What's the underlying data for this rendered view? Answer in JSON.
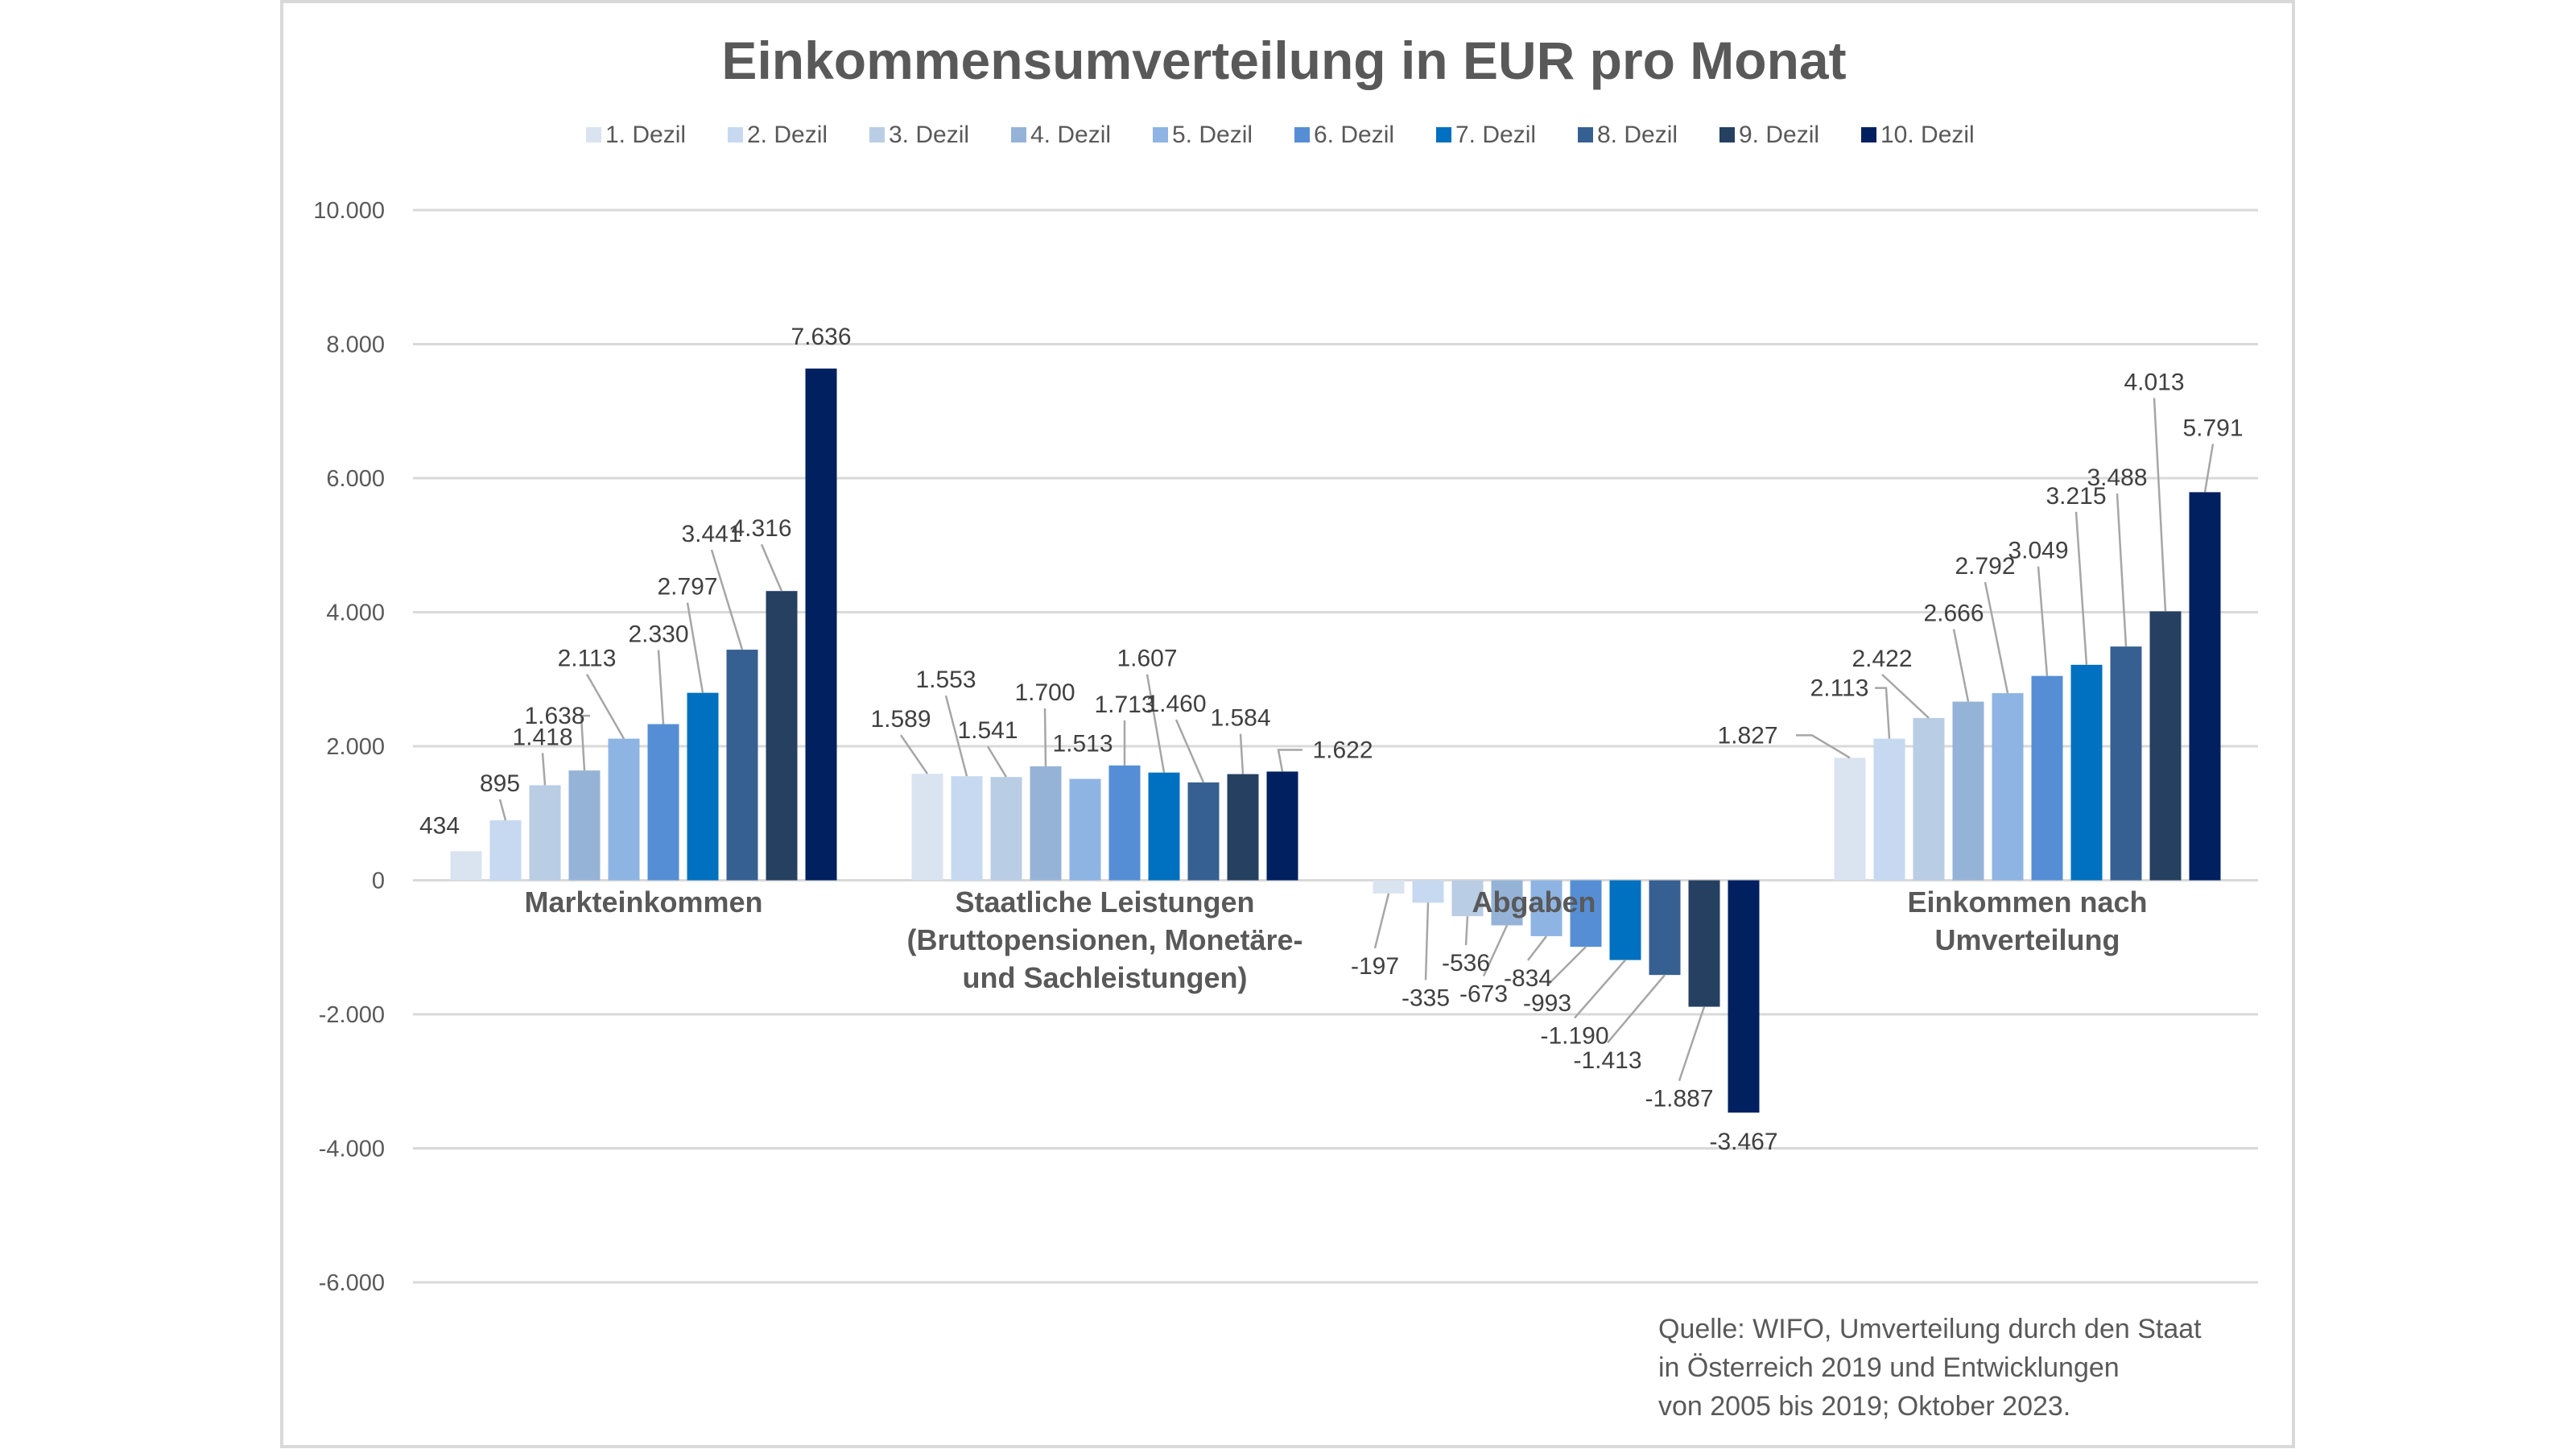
{
  "chart_data": {
    "type": "bar",
    "title": "Einkommensumverteilung in EUR pro Monat",
    "xlabel": "",
    "ylabel": "",
    "ylim": [
      -6000,
      10000
    ],
    "yticks": [
      10000,
      8000,
      6000,
      4000,
      2000,
      0,
      -2000,
      -4000,
      -6000
    ],
    "ytick_labels": [
      "10.000",
      "8.000",
      "6.000",
      "4.000",
      "2.000",
      "0",
      "-2.000",
      "-4.000",
      "-6.000"
    ],
    "grid": true,
    "legend_position": "top",
    "categories": [
      "Markteinkommen",
      "Staatliche Leistungen (Bruttopensionen, Monetäre- und Sachleistungen)",
      "Abgaben",
      "Einkommen nach Umverteilung"
    ],
    "category_label_lines": [
      [
        "Markteinkommen"
      ],
      [
        "Staatliche Leistungen",
        "(Bruttopensionen, Monetäre-",
        "und Sachleistungen)"
      ],
      [
        "Abgaben"
      ],
      [
        "Einkommen nach",
        "Umverteilung"
      ]
    ],
    "series": [
      {
        "name": "1. Dezil",
        "color": "#DAE3F0",
        "values": [
          434,
          1589,
          -197,
          1827
        ],
        "labels": [
          "434",
          "1.589",
          "-197",
          "1.827"
        ]
      },
      {
        "name": "2. Dezil",
        "color": "#C6D9F1",
        "values": [
          895,
          1553,
          -335,
          2113
        ],
        "labels": [
          "895",
          "1.553",
          "-335",
          "2.113"
        ]
      },
      {
        "name": "3. Dezil",
        "color": "#B9CDE5",
        "values": [
          1418,
          1541,
          -536,
          2422
        ],
        "labels": [
          "1.418",
          "1.541",
          "-536",
          "2.422"
        ]
      },
      {
        "name": "4. Dezil",
        "color": "#95B3D7",
        "values": [
          1638,
          1700,
          -673,
          2666
        ],
        "labels": [
          "1.638",
          "1.700",
          "-673",
          "2.666"
        ]
      },
      {
        "name": "5. Dezil",
        "color": "#8EB4E3",
        "values": [
          2113,
          1513,
          -834,
          2792
        ],
        "labels": [
          "2.113",
          "1.513",
          "-834",
          "2.792"
        ]
      },
      {
        "name": "6. Dezil",
        "color": "#558ED5",
        "values": [
          2330,
          1713,
          -993,
          3049
        ],
        "labels": [
          "2.330",
          "1.713",
          "-993",
          "3.049"
        ]
      },
      {
        "name": "7. Dezil",
        "color": "#0070C0",
        "values": [
          2797,
          1607,
          -1190,
          3215
        ],
        "labels": [
          "2.797",
          "1.607",
          "-1.190",
          "3.215"
        ]
      },
      {
        "name": "8. Dezil",
        "color": "#376092",
        "values": [
          3441,
          1460,
          -1413,
          3488
        ],
        "labels": [
          "3.441",
          "1.460",
          "-1.413",
          "3.488"
        ]
      },
      {
        "name": "9. Dezil",
        "color": "#254061",
        "values": [
          4316,
          1584,
          -1887,
          4013
        ],
        "labels": [
          "4.316",
          "1.584",
          "-1.887",
          "4.013"
        ]
      },
      {
        "name": "10. Dezil",
        "color": "#002060",
        "values": [
          7636,
          1622,
          -3467,
          5791
        ],
        "labels": [
          "7.636",
          "1.622",
          "-3.467",
          "5.791"
        ]
      }
    ],
    "source_lines": [
      "Quelle: WIFO, Umverteilung durch den Staat",
      "in Österreich 2019 und Entwicklungen",
      "von 2005 bis 2019; Oktober 2023."
    ]
  }
}
